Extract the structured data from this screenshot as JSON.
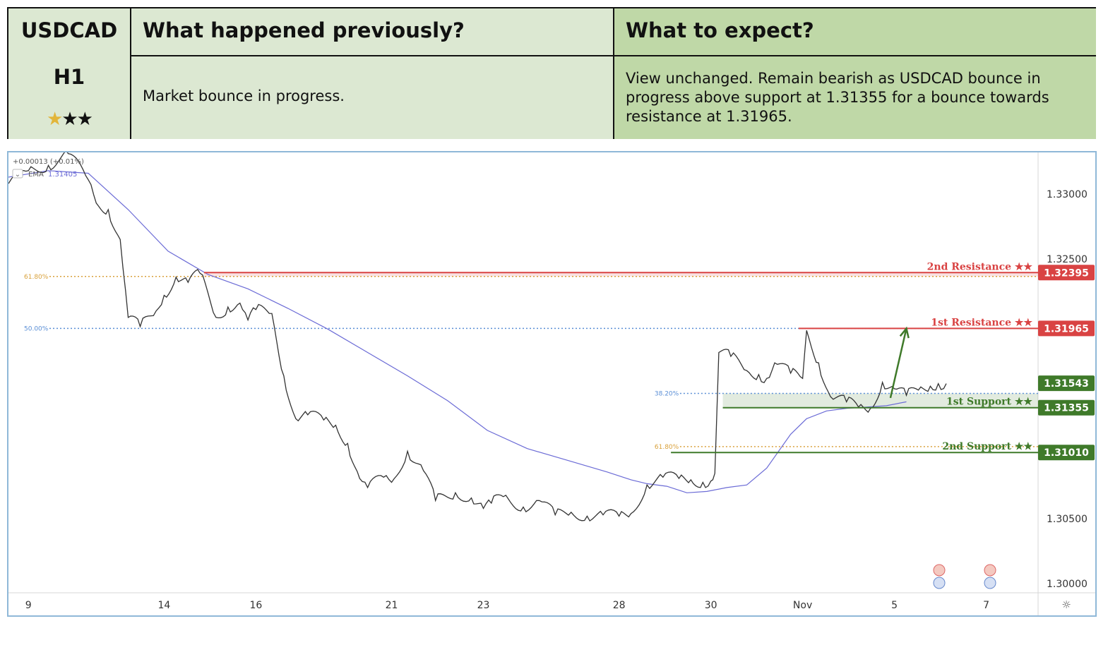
{
  "header": {
    "symbol": "USDCAD",
    "timeframe": "H1",
    "rating_stars_gold": "★",
    "rating_stars_black": "★★",
    "col_previous_title": "What happened previously?",
    "col_expect_title": "What to expect?",
    "previous_text": "Market bounce in progress.",
    "expect_text": "View unchanged. Remain bearish as USDCAD bounce in progress above support at 1.31355 for a bounce towards resistance at 1.31965."
  },
  "chart_data": {
    "type": "line",
    "instrument": "USDCAD",
    "timeframe": "H1",
    "info_line": "+0.00013 (+0.01%)",
    "ema_label": "EMA",
    "ema_value": "1.31405",
    "y_axis": {
      "ticks": [
        "1.33000",
        "1.32500",
        "1.30500",
        "1.30000"
      ],
      "tick_values": [
        1.33,
        1.325,
        1.305,
        1.3
      ],
      "ylim": [
        1.2993,
        1.3332
      ]
    },
    "x_axis": {
      "ticks": [
        "9",
        "14",
        "16",
        "21",
        "23",
        "28",
        "30",
        "Nov",
        "5",
        "7"
      ],
      "tick_index": [
        5,
        39,
        62,
        96,
        119,
        153,
        176,
        199,
        222,
        245
      ]
    },
    "xlim": [
      0,
      258
    ],
    "price": {
      "idx": [
        0,
        5,
        10,
        15,
        20,
        22,
        25,
        28,
        30,
        33,
        37,
        39,
        42,
        45,
        48,
        52,
        55,
        58,
        60,
        62,
        66,
        69,
        72,
        75,
        79,
        82,
        85,
        88,
        90,
        94,
        96,
        100,
        104,
        107,
        112,
        116,
        119,
        121,
        124,
        129,
        133,
        137,
        141,
        145,
        149,
        153,
        156,
        160,
        164,
        168,
        171,
        174,
        176,
        177,
        178,
        181,
        185,
        188,
        190,
        192,
        196,
        199,
        200,
        203,
        206,
        210,
        213,
        216,
        219,
        222,
        225,
        228,
        231,
        233,
        235
      ],
      "close": [
        1.3308,
        1.3318,
        1.3322,
        1.3331,
        1.3311,
        1.3293,
        1.3288,
        1.3265,
        1.3205,
        1.3198,
        1.321,
        1.3222,
        1.3236,
        1.3232,
        1.3239,
        1.3205,
        1.3213,
        1.3216,
        1.3203,
        1.3211,
        1.3208,
        1.316,
        1.3127,
        1.313,
        1.3126,
        1.3122,
        1.3108,
        1.3081,
        1.3074,
        1.3082,
        1.3078,
        1.3102,
        1.3087,
        1.3064,
        1.307,
        1.3066,
        1.3058,
        1.3062,
        1.3067,
        1.3059,
        1.3064,
        1.3053,
        1.3055,
        1.3052,
        1.3053,
        1.3052,
        1.3054,
        1.3076,
        1.3082,
        1.3081,
        1.308,
        1.3078,
        1.3079,
        1.3085,
        1.3178,
        1.3175,
        1.3164,
        1.3161,
        1.3158,
        1.317,
        1.3162,
        1.3158,
        1.3195,
        1.317,
        1.3144,
        1.314,
        1.3136,
        1.3135,
        1.3155,
        1.315,
        1.3145,
        1.3149,
        1.3152,
        1.3154,
        1.3154
      ]
    },
    "ema": {
      "idx": [
        0,
        10,
        20,
        30,
        40,
        50,
        60,
        70,
        80,
        90,
        100,
        110,
        120,
        130,
        140,
        150,
        156,
        160,
        165,
        170,
        175,
        180,
        185,
        190,
        196,
        200,
        205,
        210,
        215,
        220,
        225
      ],
      "value": [
        1.3313,
        1.3318,
        1.3316,
        1.3288,
        1.3256,
        1.3238,
        1.3227,
        1.3212,
        1.3196,
        1.3178,
        1.316,
        1.3141,
        1.3118,
        1.3104,
        1.3095,
        1.3086,
        1.308,
        1.3077,
        1.3075,
        1.307,
        1.3071,
        1.3074,
        1.3076,
        1.3089,
        1.3115,
        1.3127,
        1.3133,
        1.3135,
        1.3136,
        1.3137,
        1.314
      ]
    },
    "levels": [
      {
        "label": "2nd Resistance",
        "stars": "★★",
        "value": "1.32395",
        "price": 1.32395,
        "from_idx": 49,
        "color": "#d94343",
        "zone_low": 1.32365,
        "zone_high": 1.32395
      },
      {
        "label": "1st Resistance",
        "stars": "★★",
        "value": "1.31965",
        "price": 1.31965,
        "from_idx": 198,
        "color": "#d94343"
      },
      {
        "label": "1st Support",
        "stars": "★★",
        "value": "1.31355",
        "price": 1.31355,
        "from_idx": 179,
        "color": "#3f7a2a",
        "zone_low": 1.31355,
        "zone_high": 1.31465
      },
      {
        "label": "2nd Support",
        "stars": "★★",
        "value": "1.31010",
        "price": 1.3101,
        "from_idx": 166,
        "color": "#3f7a2a"
      }
    ],
    "last_price": {
      "value": "1.31543",
      "price": 1.31543,
      "color": "#3f7a2a"
    },
    "fibonacci": [
      {
        "label": "61.80%",
        "price": 1.32365,
        "from_idx": 0,
        "color": "#d9a13b"
      },
      {
        "label": "50.00%",
        "price": 1.31965,
        "from_idx": 0,
        "color": "#5b8fd6"
      },
      {
        "label": "38.20%",
        "price": 1.31465,
        "from_idx": 158,
        "color": "#5b8fd6"
      },
      {
        "label": "61.80%",
        "price": 1.31055,
        "from_idx": 158,
        "color": "#d9a13b"
      }
    ],
    "projection": {
      "from_idx": 221,
      "from_price": 1.3143,
      "to_idx": 225,
      "to_price": 1.31965,
      "color": "#3f7a2a"
    },
    "series_colors": {
      "price": "#333333",
      "ema": "#6b6bd6"
    }
  }
}
